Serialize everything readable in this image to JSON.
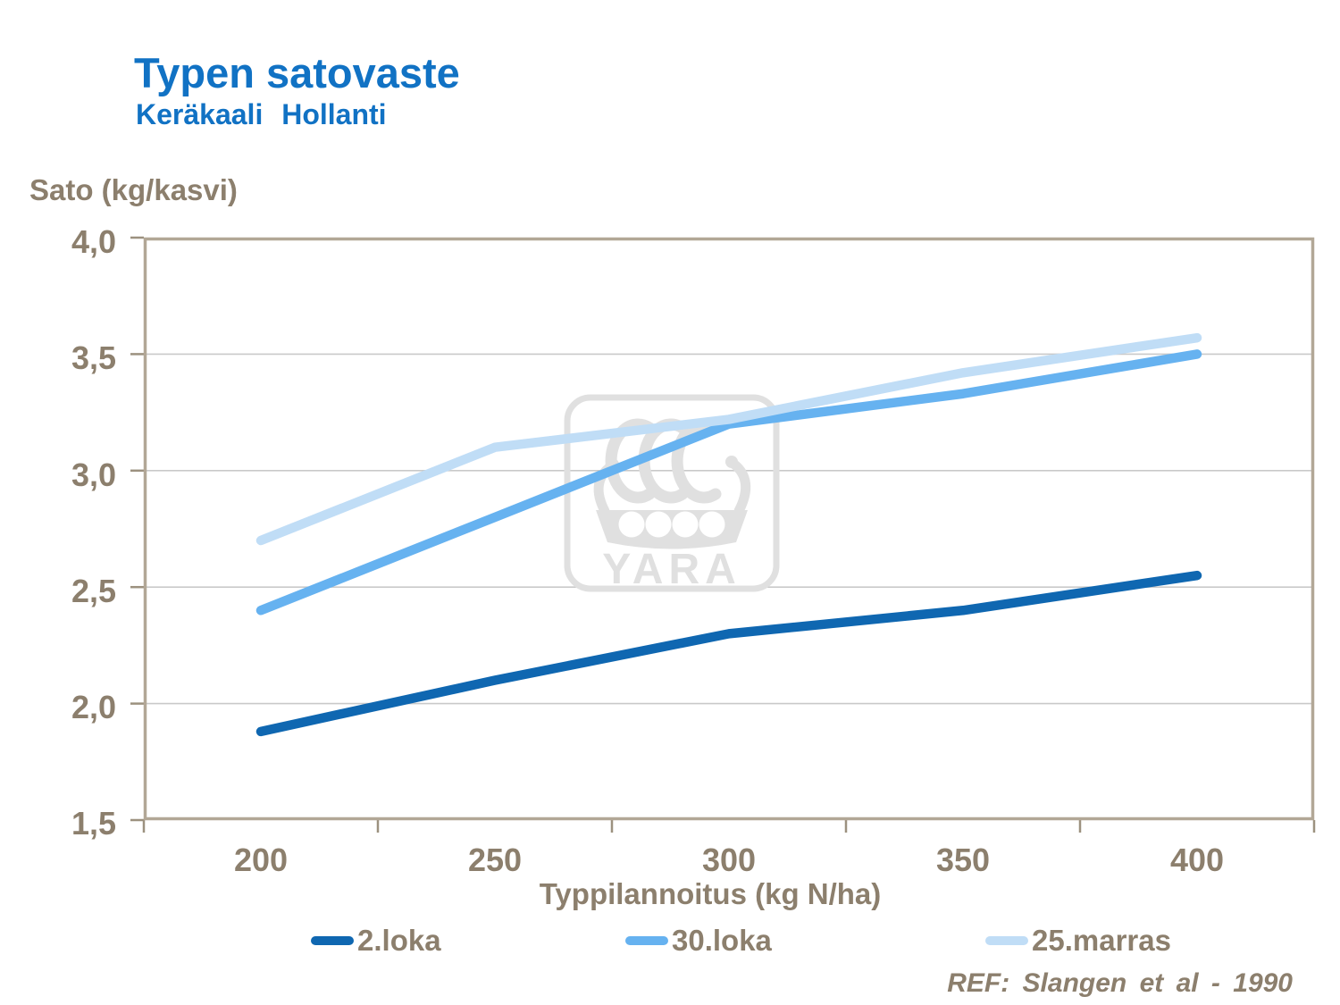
{
  "title": "Typen satovaste",
  "subtitle": "Keräkaali Hollanti",
  "y_axis_title": "Sato (kg/kasvi)",
  "x_axis_title": "Typpilannoitus (kg N/ha)",
  "ref_note": "REF: Slangen et al - 1990",
  "watermark_text": "YARA",
  "colors": {
    "title_blue": "#1172C4",
    "text_brown": "#8C7F6D",
    "frame_tan": "#B2A796",
    "tick_tan": "#9C917F",
    "gridline_gray": "#C9C9C9",
    "watermark_gray": "#E0E0E0",
    "series_dark_blue": "#0F67B1",
    "series_mid_blue": "#66B2F0",
    "series_light_blue": "#C0DDF6"
  },
  "chart_data": {
    "type": "line",
    "title": "Typen satovaste — Keräkaali Hollanti",
    "xlabel": "Typpilannoitus (kg N/ha)",
    "ylabel": "Sato (kg/kasvi)",
    "x": [
      200,
      250,
      300,
      350,
      400
    ],
    "series": [
      {
        "name": "2.loka",
        "color": "#0F67B1",
        "values": [
          1.88,
          2.1,
          2.3,
          2.4,
          2.55
        ]
      },
      {
        "name": "30.loka",
        "color": "#66B2F0",
        "values": [
          2.4,
          2.8,
          3.2,
          3.33,
          3.5
        ]
      },
      {
        "name": "25.marras",
        "color": "#C0DDF6",
        "values": [
          2.7,
          3.1,
          3.22,
          3.42,
          3.57
        ]
      }
    ],
    "ylim": [
      1.5,
      4.0
    ],
    "ytick_step": 0.5,
    "ytick_labels": [
      "4,0",
      "3,5",
      "3,0",
      "2,5",
      "2,0",
      "1,5"
    ],
    "grid": "horizontal",
    "legend_position": "bottom"
  }
}
